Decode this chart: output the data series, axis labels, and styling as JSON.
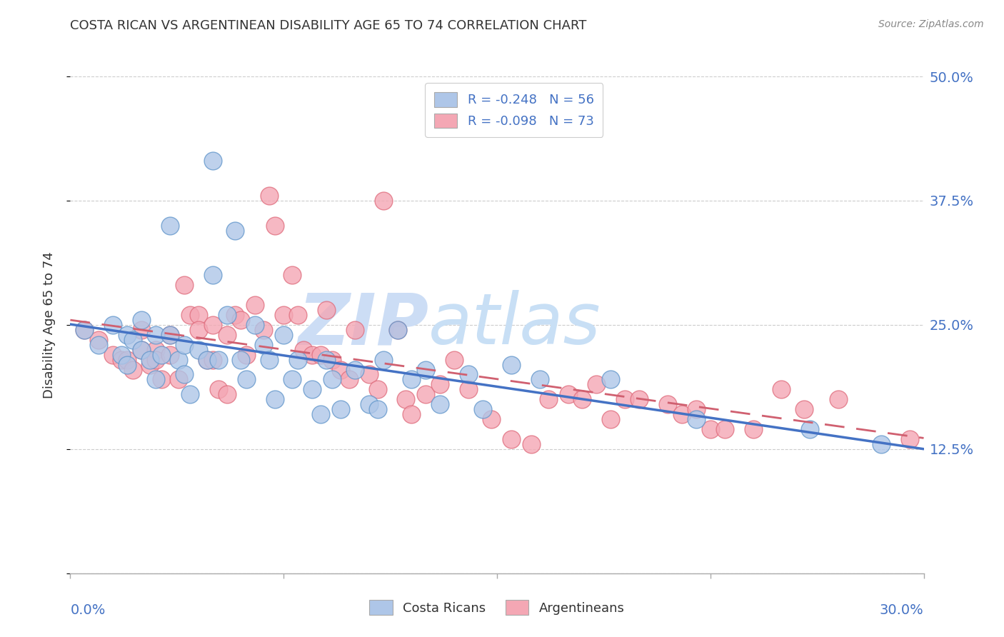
{
  "title": "COSTA RICAN VS ARGENTINEAN DISABILITY AGE 65 TO 74 CORRELATION CHART",
  "source": "Source: ZipAtlas.com",
  "ylabel": "Disability Age 65 to 74",
  "yticks": [
    0.0,
    0.125,
    0.25,
    0.375,
    0.5
  ],
  "ytick_labels": [
    "",
    "12.5%",
    "25.0%",
    "37.5%",
    "50.0%"
  ],
  "xlim": [
    0.0,
    0.3
  ],
  "ylim": [
    0.0,
    0.5
  ],
  "r_costa": -0.248,
  "n_costa": 56,
  "r_arg": -0.098,
  "n_arg": 73,
  "color_costa_fill": "#aec6e8",
  "color_costa_edge": "#6699cc",
  "color_arg_fill": "#f4a7b4",
  "color_arg_edge": "#e07080",
  "color_costa_line": "#4472c4",
  "color_arg_line": "#d06070",
  "watermark_zip": "ZIP",
  "watermark_atlas": "atlas",
  "watermark_color": "#ccddf5",
  "costa_x": [
    0.005,
    0.01,
    0.015,
    0.018,
    0.02,
    0.02,
    0.022,
    0.025,
    0.025,
    0.028,
    0.03,
    0.03,
    0.032,
    0.035,
    0.035,
    0.038,
    0.04,
    0.04,
    0.042,
    0.045,
    0.048,
    0.05,
    0.05,
    0.052,
    0.055,
    0.058,
    0.06,
    0.062,
    0.065,
    0.068,
    0.07,
    0.072,
    0.075,
    0.078,
    0.08,
    0.085,
    0.088,
    0.09,
    0.092,
    0.095,
    0.1,
    0.105,
    0.108,
    0.11,
    0.115,
    0.12,
    0.125,
    0.13,
    0.14,
    0.145,
    0.155,
    0.165,
    0.19,
    0.22,
    0.26,
    0.285
  ],
  "costa_y": [
    0.245,
    0.23,
    0.25,
    0.22,
    0.24,
    0.21,
    0.235,
    0.255,
    0.225,
    0.215,
    0.24,
    0.195,
    0.22,
    0.35,
    0.24,
    0.215,
    0.23,
    0.2,
    0.18,
    0.225,
    0.215,
    0.415,
    0.3,
    0.215,
    0.26,
    0.345,
    0.215,
    0.195,
    0.25,
    0.23,
    0.215,
    0.175,
    0.24,
    0.195,
    0.215,
    0.185,
    0.16,
    0.215,
    0.195,
    0.165,
    0.205,
    0.17,
    0.165,
    0.215,
    0.245,
    0.195,
    0.205,
    0.17,
    0.2,
    0.165,
    0.21,
    0.195,
    0.195,
    0.155,
    0.145,
    0.13
  ],
  "arg_x": [
    0.005,
    0.01,
    0.015,
    0.018,
    0.02,
    0.022,
    0.025,
    0.025,
    0.028,
    0.03,
    0.03,
    0.032,
    0.035,
    0.035,
    0.038,
    0.04,
    0.042,
    0.045,
    0.045,
    0.048,
    0.05,
    0.05,
    0.052,
    0.055,
    0.055,
    0.058,
    0.06,
    0.062,
    0.065,
    0.068,
    0.07,
    0.072,
    0.075,
    0.078,
    0.08,
    0.082,
    0.085,
    0.088,
    0.09,
    0.092,
    0.095,
    0.098,
    0.1,
    0.105,
    0.108,
    0.11,
    0.115,
    0.118,
    0.12,
    0.125,
    0.13,
    0.135,
    0.14,
    0.148,
    0.155,
    0.162,
    0.168,
    0.175,
    0.18,
    0.185,
    0.19,
    0.195,
    0.2,
    0.21,
    0.215,
    0.22,
    0.225,
    0.23,
    0.24,
    0.25,
    0.258,
    0.27,
    0.295
  ],
  "arg_y": [
    0.245,
    0.235,
    0.22,
    0.215,
    0.215,
    0.205,
    0.245,
    0.225,
    0.21,
    0.225,
    0.215,
    0.195,
    0.24,
    0.22,
    0.195,
    0.29,
    0.26,
    0.26,
    0.245,
    0.215,
    0.25,
    0.215,
    0.185,
    0.24,
    0.18,
    0.26,
    0.255,
    0.22,
    0.27,
    0.245,
    0.38,
    0.35,
    0.26,
    0.3,
    0.26,
    0.225,
    0.22,
    0.22,
    0.265,
    0.215,
    0.205,
    0.195,
    0.245,
    0.2,
    0.185,
    0.375,
    0.245,
    0.175,
    0.16,
    0.18,
    0.19,
    0.215,
    0.185,
    0.155,
    0.135,
    0.13,
    0.175,
    0.18,
    0.175,
    0.19,
    0.155,
    0.175,
    0.175,
    0.17,
    0.16,
    0.165,
    0.145,
    0.145,
    0.145,
    0.185,
    0.165,
    0.175,
    0.135
  ]
}
